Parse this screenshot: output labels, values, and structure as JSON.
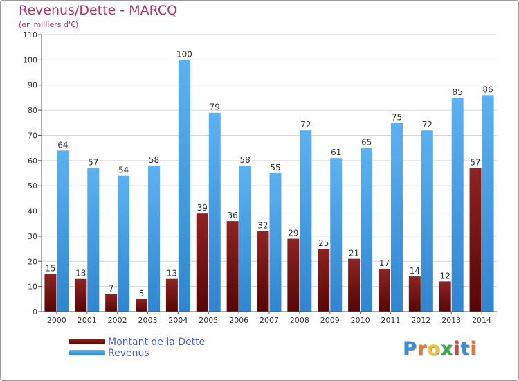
{
  "title": "Revenus/Dette - MARCQ",
  "subtitle": "(en milliers d'€)",
  "chart_data": {
    "type": "bar",
    "title": "Revenus/Dette - MARCQ",
    "subtitle": "(en milliers d'€)",
    "categories": [
      "2000",
      "2001",
      "2002",
      "2003",
      "2004",
      "2005",
      "2006",
      "2007",
      "2008",
      "2009",
      "2010",
      "2011",
      "2012",
      "2013",
      "2014"
    ],
    "series": [
      {
        "name": "Montant de la Dette",
        "values": [
          15,
          13,
          7,
          5,
          13,
          39,
          36,
          32,
          29,
          25,
          21,
          17,
          14,
          12,
          57
        ],
        "color": "#7a1212"
      },
      {
        "name": "Revenus",
        "values": [
          64,
          57,
          54,
          58,
          100,
          79,
          58,
          55,
          72,
          61,
          65,
          75,
          72,
          85,
          86
        ],
        "color": "#4aa3e8"
      }
    ],
    "ylim": [
      0,
      110
    ],
    "yticks": [
      0,
      10,
      20,
      30,
      40,
      50,
      60,
      70,
      80,
      90,
      100,
      110
    ],
    "grid": true,
    "legend_position": "bottom-left"
  },
  "legend": {
    "items": [
      {
        "label": "Montant de la Dette",
        "color": "#6b1010"
      },
      {
        "label": "Revenus",
        "color": "#4aa3e8"
      }
    ]
  },
  "logo": {
    "text": "Proxiti",
    "letters": [
      "P",
      "r",
      "o",
      "x",
      "i",
      "t",
      "i"
    ],
    "colors": [
      "#3a8fd6",
      "#e8792a",
      "#f2c230",
      "#3aa84a",
      "#e04040",
      "#3a8fd6",
      "#e8792a"
    ]
  }
}
